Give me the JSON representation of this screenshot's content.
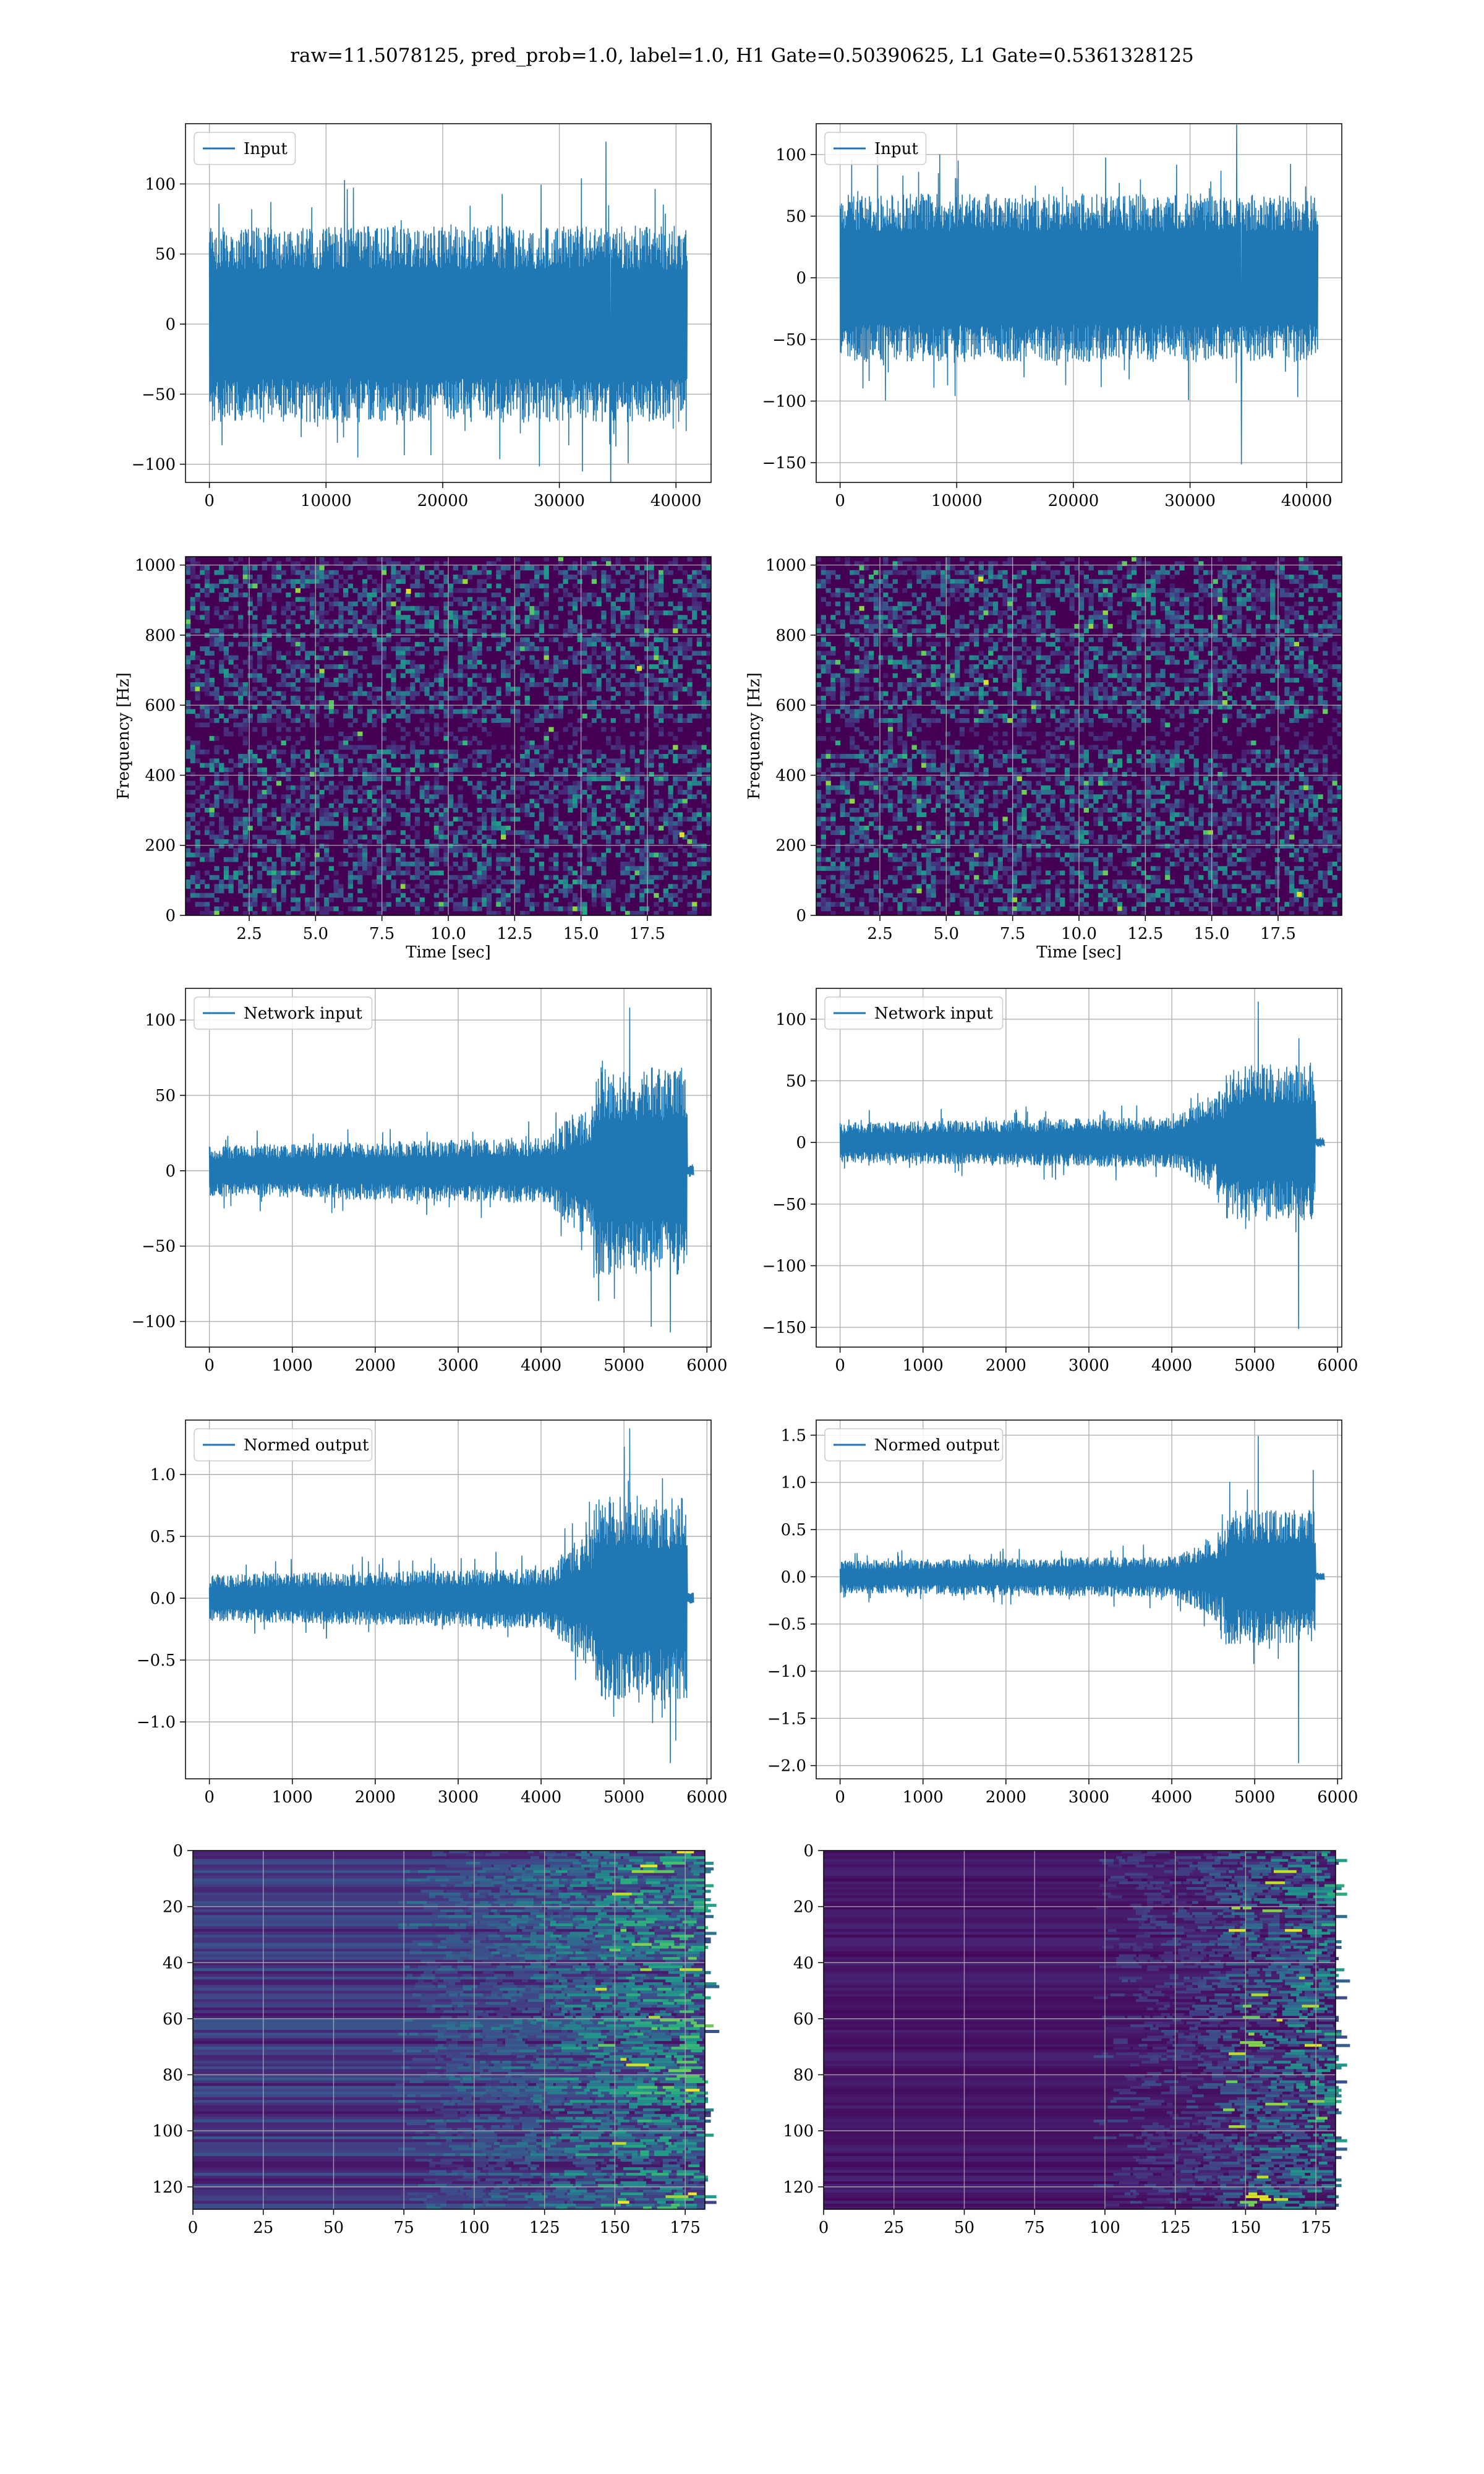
{
  "suptitle": "raw=11.5078125, pred_prob=1.0, label=1.0, H1 Gate=0.50390625, L1 Gate=0.5361328125",
  "colors": {
    "line": "#1f77b4",
    "grid": "#b0b0b0",
    "viridis_low": "#440154",
    "viridis_mid": "#21918c",
    "viridis_high": "#fde725"
  },
  "chart_data": [
    {
      "id": "input-h1",
      "type": "line",
      "grid": true,
      "legend_loc": "upper left",
      "series": [
        {
          "name": "Input",
          "envelope": {
            "x_start": 0,
            "x_end": 40960,
            "upper": 70,
            "lower": -70,
            "peak_max": 130,
            "peak_min": -121
          }
        }
      ],
      "xlim": [
        -2048,
        43008
      ],
      "ylim": [
        -113,
        143
      ],
      "xticks": [
        0,
        10000,
        20000,
        30000,
        40000
      ],
      "xtick_labels": [
        "0",
        "10000",
        "20000",
        "30000",
        "40000"
      ],
      "yticks": [
        -100,
        -50,
        0,
        50,
        100
      ],
      "ytick_labels": [
        "−100",
        "−50",
        "0",
        "50",
        "100"
      ]
    },
    {
      "id": "input-l1",
      "type": "line",
      "grid": true,
      "legend_loc": "upper left",
      "series": [
        {
          "name": "Input",
          "envelope": {
            "x_start": 0,
            "x_end": 40960,
            "upper": 68,
            "lower": -68,
            "peak_max": 124,
            "peak_min": -151
          }
        }
      ],
      "xlim": [
        -2048,
        43008
      ],
      "ylim": [
        -166,
        125
      ],
      "xticks": [
        0,
        10000,
        20000,
        30000,
        40000
      ],
      "xtick_labels": [
        "0",
        "10000",
        "20000",
        "30000",
        "40000"
      ],
      "yticks": [
        -150,
        -100,
        -50,
        0,
        50,
        100
      ],
      "ytick_labels": [
        "−150",
        "−100",
        "−50",
        "0",
        "50",
        "100"
      ]
    },
    {
      "id": "spectrogram-h1",
      "type": "heatmap",
      "grid": true,
      "colormap": "viridis",
      "xlabel": "Time [sec]",
      "ylabel": "Frequency [Hz]",
      "xlim": [
        0.1,
        19.9
      ],
      "ylim": [
        0,
        1024
      ],
      "xticks": [
        2.5,
        5.0,
        7.5,
        10.0,
        12.5,
        15.0,
        17.5
      ],
      "xtick_labels": [
        "2.5",
        "5.0",
        "7.5",
        "10.0",
        "12.5",
        "15.0",
        "17.5"
      ],
      "yticks": [
        0,
        200,
        400,
        600,
        800,
        1000
      ],
      "ytick_labels": [
        "0",
        "200",
        "400",
        "600",
        "800",
        "1000"
      ],
      "hot_spots": [
        {
          "t": 18.8,
          "f": 230
        },
        {
          "t": 17.2,
          "f": 705
        },
        {
          "t": 8.5,
          "f": 925
        }
      ]
    },
    {
      "id": "spectrogram-l1",
      "type": "heatmap",
      "grid": true,
      "colormap": "viridis",
      "xlabel": "Time [sec]",
      "ylabel": "Frequency [Hz]",
      "xlim": [
        0.1,
        19.9
      ],
      "ylim": [
        0,
        1024
      ],
      "xticks": [
        2.5,
        5.0,
        7.5,
        10.0,
        12.5,
        15.0,
        17.5
      ],
      "xtick_labels": [
        "2.5",
        "5.0",
        "7.5",
        "10.0",
        "12.5",
        "15.0",
        "17.5"
      ],
      "yticks": [
        0,
        200,
        400,
        600,
        800,
        1000
      ],
      "ytick_labels": [
        "0",
        "200",
        "400",
        "600",
        "800",
        "1000"
      ],
      "hot_spots": [
        {
          "t": 6.3,
          "f": 960
        },
        {
          "t": 6.5,
          "f": 665
        },
        {
          "t": 18.3,
          "f": 60
        }
      ]
    },
    {
      "id": "network-input-h1",
      "type": "line",
      "grid": true,
      "legend_loc": "upper left",
      "series": [
        {
          "name": "Network input",
          "envelope": {
            "x_start": 0,
            "x_end": 5760,
            "tail_end": 5840,
            "flat_end": 4100,
            "base": 18,
            "peak": 60,
            "burst_start": 4650,
            "peak_max": 108,
            "peak_min": -107
          }
        }
      ],
      "xlim": [
        -288,
        6050
      ],
      "ylim": [
        -117,
        121
      ],
      "xticks": [
        0,
        1000,
        2000,
        3000,
        4000,
        5000,
        6000
      ],
      "xtick_labels": [
        "0",
        "1000",
        "2000",
        "3000",
        "4000",
        "5000",
        "6000"
      ],
      "yticks": [
        -100,
        -50,
        0,
        50,
        100
      ],
      "ytick_labels": [
        "−100",
        "−50",
        "0",
        "50",
        "100"
      ]
    },
    {
      "id": "network-input-l1",
      "type": "line",
      "grid": true,
      "legend_loc": "upper left",
      "series": [
        {
          "name": "Network input",
          "envelope": {
            "x_start": 0,
            "x_end": 5730,
            "tail_end": 5840,
            "flat_end": 4100,
            "base": 17,
            "peak": 55,
            "burst_start": 4650,
            "peak_max": 114,
            "peak_min": -151
          }
        }
      ],
      "xlim": [
        -288,
        6050
      ],
      "ylim": [
        -166,
        125
      ],
      "xticks": [
        0,
        1000,
        2000,
        3000,
        4000,
        5000,
        6000
      ],
      "xtick_labels": [
        "0",
        "1000",
        "2000",
        "3000",
        "4000",
        "5000",
        "6000"
      ],
      "yticks": [
        -150,
        -100,
        -50,
        0,
        50,
        100
      ],
      "ytick_labels": [
        "−150",
        "−100",
        "−50",
        "0",
        "50",
        "100"
      ]
    },
    {
      "id": "normed-output-h1",
      "type": "line",
      "grid": true,
      "legend_loc": "upper left",
      "series": [
        {
          "name": "Normed output",
          "envelope": {
            "x_start": 0,
            "x_end": 5760,
            "tail_end": 5840,
            "flat_end": 4100,
            "base": 0.2,
            "peak": 0.72,
            "burst_start": 4650,
            "peak_max": 1.37,
            "peak_min": -1.33
          }
        }
      ],
      "xlim": [
        -288,
        6050
      ],
      "ylim": [
        -1.46,
        1.44
      ],
      "xticks": [
        0,
        1000,
        2000,
        3000,
        4000,
        5000,
        6000
      ],
      "xtick_labels": [
        "0",
        "1000",
        "2000",
        "3000",
        "4000",
        "5000",
        "6000"
      ],
      "yticks": [
        -1.0,
        -0.5,
        0.0,
        0.5,
        1.0
      ],
      "ytick_labels": [
        "−1.0",
        "−0.5",
        "0.0",
        "0.5",
        "1.0"
      ]
    },
    {
      "id": "normed-output-l1",
      "type": "line",
      "grid": true,
      "legend_loc": "upper left",
      "series": [
        {
          "name": "Normed output",
          "envelope": {
            "x_start": 0,
            "x_end": 5730,
            "tail_end": 5840,
            "flat_end": 4100,
            "base": 0.18,
            "peak": 0.62,
            "burst_start": 4650,
            "peak_max": 1.49,
            "peak_min": -1.97
          }
        }
      ],
      "xlim": [
        -288,
        6050
      ],
      "ylim": [
        -2.14,
        1.66
      ],
      "xticks": [
        0,
        1000,
        2000,
        3000,
        4000,
        5000,
        6000
      ],
      "xtick_labels": [
        "0",
        "1000",
        "2000",
        "3000",
        "4000",
        "5000",
        "6000"
      ],
      "yticks": [
        -2.0,
        -1.5,
        -1.0,
        -0.5,
        0.0,
        0.5,
        1.0,
        1.5
      ],
      "ytick_labels": [
        "−2.0",
        "−1.5",
        "−1.0",
        "−0.5",
        "0.0",
        "0.5",
        "1.0",
        "1.5"
      ]
    },
    {
      "id": "feature-map-h1",
      "type": "heatmap",
      "grid": true,
      "colormap": "viridis",
      "xlim": [
        0,
        182
      ],
      "ylim": [
        128,
        0
      ],
      "xticks": [
        0,
        25,
        50,
        75,
        100,
        125,
        150,
        175
      ],
      "xtick_labels": [
        "0",
        "25",
        "50",
        "75",
        "100",
        "125",
        "150",
        "175"
      ],
      "yticks": [
        0,
        20,
        40,
        60,
        80,
        100,
        120
      ],
      "ytick_labels": [
        "0",
        "20",
        "40",
        "60",
        "80",
        "100",
        "120"
      ],
      "activity_onset_col": 100
    },
    {
      "id": "feature-map-l1",
      "type": "heatmap",
      "grid": true,
      "colormap": "viridis",
      "xlim": [
        0,
        182
      ],
      "ylim": [
        128,
        0
      ],
      "xticks": [
        0,
        25,
        50,
        75,
        100,
        125,
        150,
        175
      ],
      "xtick_labels": [
        "0",
        "25",
        "50",
        "75",
        "100",
        "125",
        "150",
        "175"
      ],
      "yticks": [
        0,
        20,
        40,
        60,
        80,
        100,
        120
      ],
      "ytick_labels": [
        "0",
        "20",
        "40",
        "60",
        "80",
        "100",
        "120"
      ],
      "activity_onset_col": 125
    }
  ]
}
